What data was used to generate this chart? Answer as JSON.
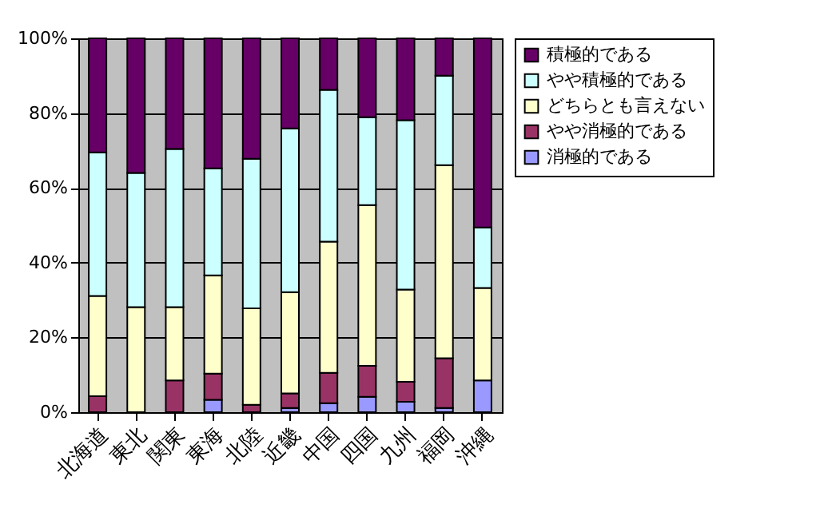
{
  "chart_data": {
    "type": "bar",
    "stacked": true,
    "categories": [
      "北海道",
      "東北",
      "関東",
      "東海",
      "北陸",
      "近畿",
      "中国",
      "四国",
      "九州",
      "福岡",
      "沖縄"
    ],
    "series": [
      {
        "name": "消極的である",
        "color": "#9999ff",
        "values": [
          0,
          0,
          null,
          3.3,
          0,
          1.1,
          2.4,
          4.1,
          2.8,
          1.1,
          8.5
        ]
      },
      {
        "name": "やや消極的である",
        "color": "#993366",
        "values": [
          4.3,
          0,
          8.5,
          7.0,
          2.0,
          3.9,
          8.1,
          8.3,
          5.3,
          13.3,
          0
        ]
      },
      {
        "name": "どちらとも言えない",
        "color": "#ffffcc",
        "values": [
          26.8,
          28.1,
          19.6,
          26.3,
          25.8,
          27.1,
          35.1,
          43.0,
          24.7,
          51.7,
          24.7
        ]
      },
      {
        "name": "やや積極的である",
        "color": "#ccffff",
        "values": [
          38.4,
          35.9,
          42.3,
          28.6,
          40.0,
          43.8,
          40.6,
          23.5,
          45.3,
          23.9,
          16.2
        ]
      },
      {
        "name": "積極的である",
        "color": "#660066",
        "values": [
          30.5,
          36.0,
          29.6,
          34.8,
          32.2,
          24.1,
          13.8,
          21.1,
          21.9,
          10.0,
          50.6
        ]
      }
    ],
    "ylim": [
      0,
      100
    ],
    "yticks": [
      {
        "value": 0,
        "label": "0%"
      },
      {
        "value": 20,
        "label": "20%"
      },
      {
        "value": 40,
        "label": "40%"
      },
      {
        "value": 60,
        "label": "60%"
      },
      {
        "value": 80,
        "label": "80%"
      },
      {
        "value": 100,
        "label": "100%"
      }
    ],
    "grid": "y",
    "legend": "right"
  }
}
